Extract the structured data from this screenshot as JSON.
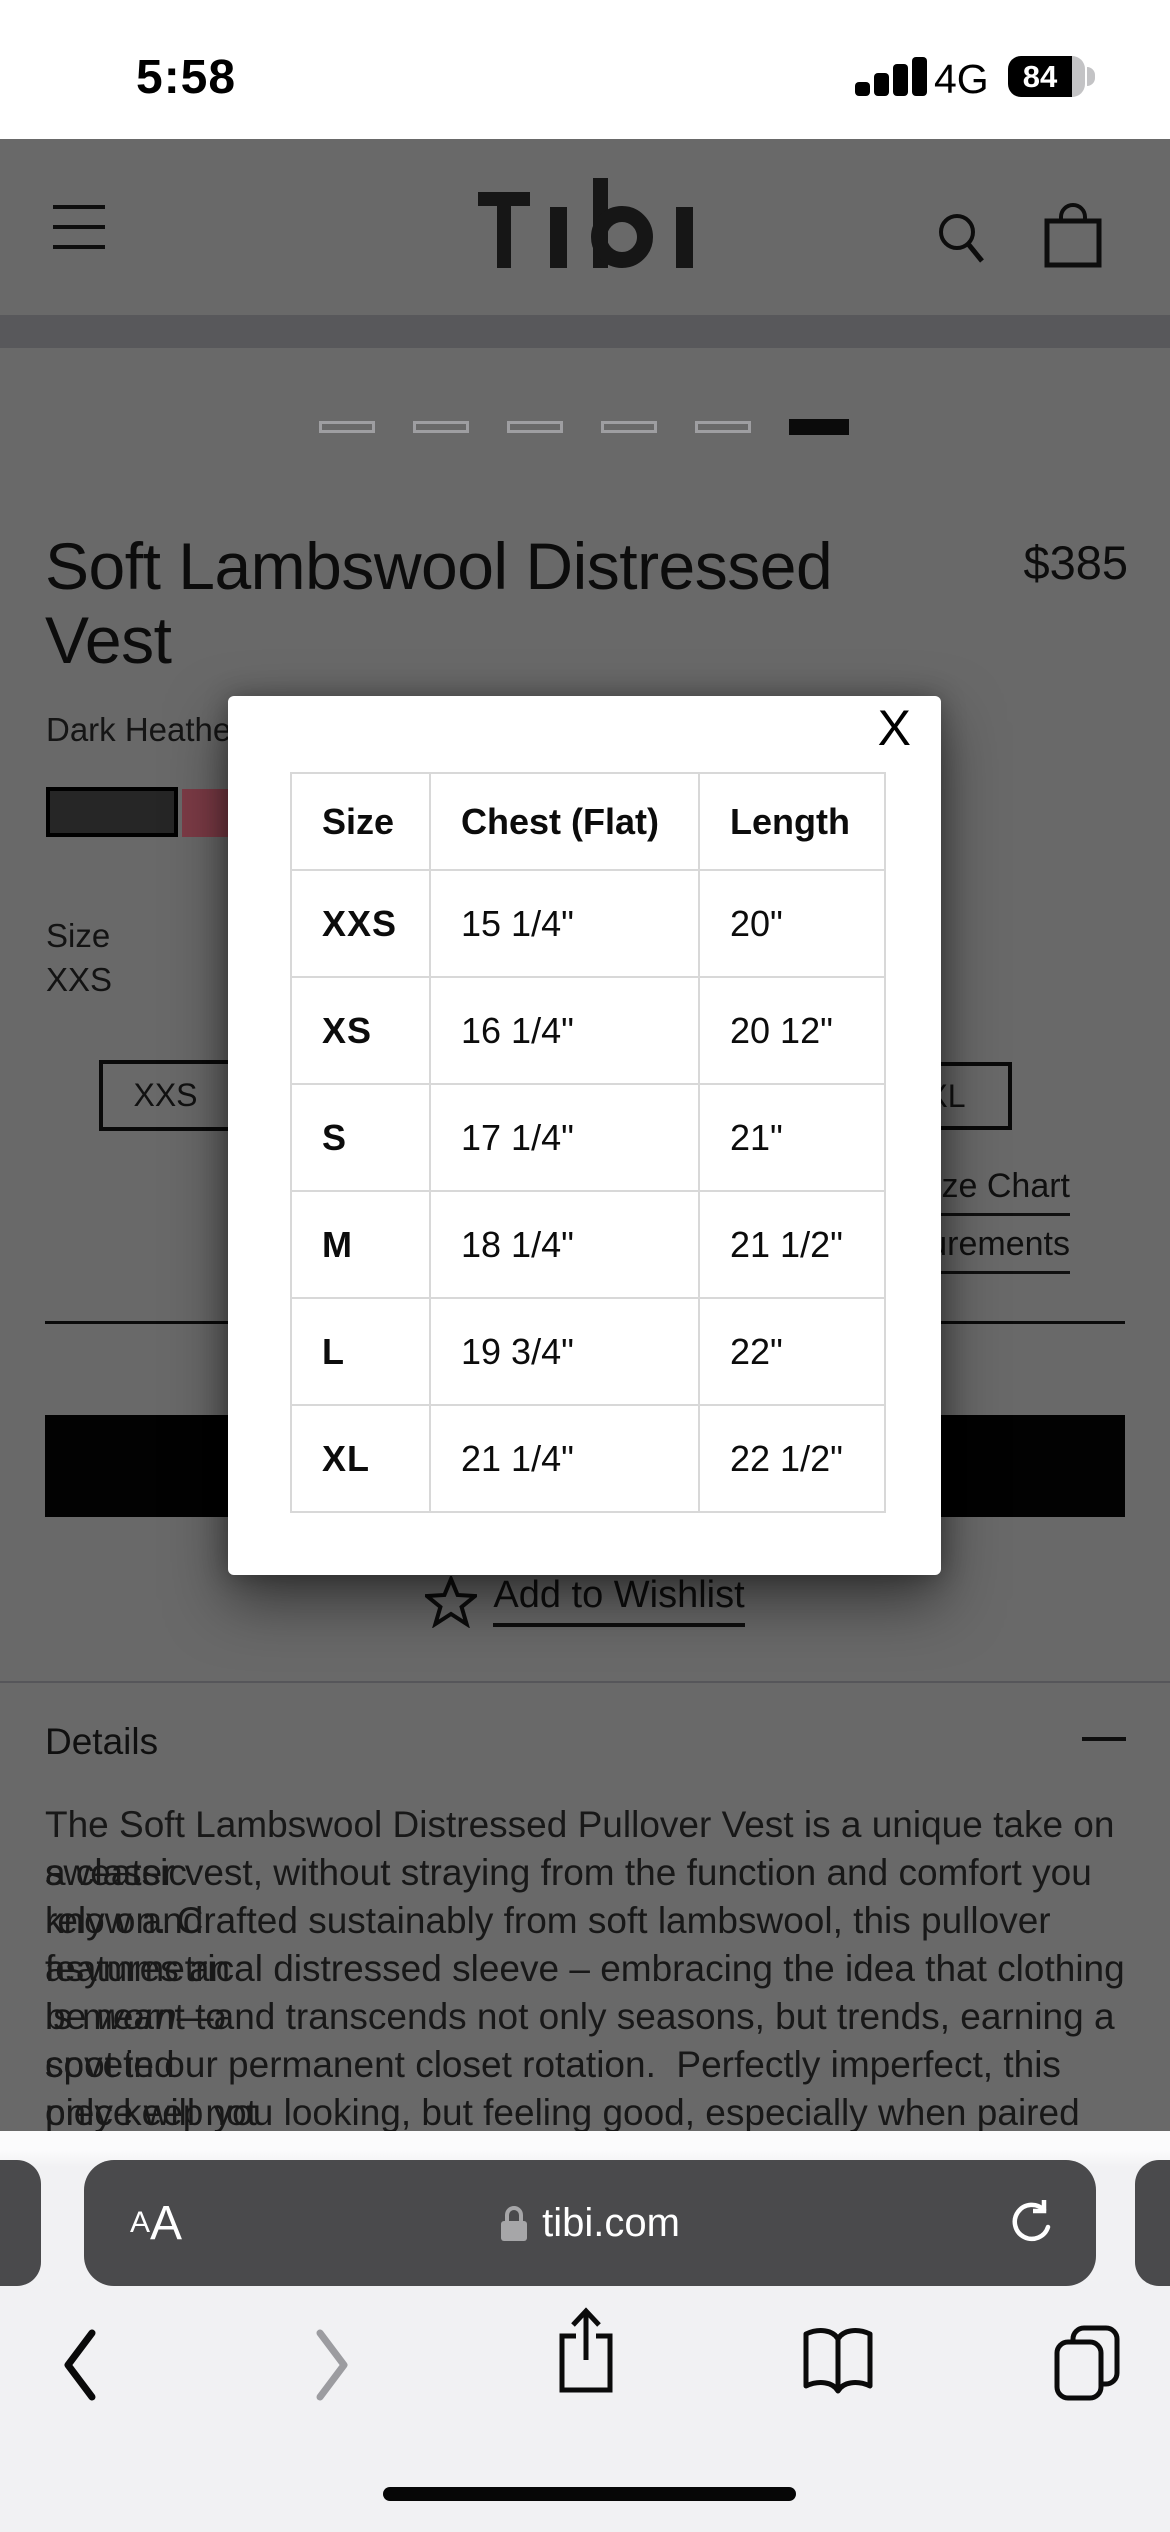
{
  "status_bar": {
    "time": "5:58",
    "network": "4G",
    "battery_percent": "84"
  },
  "header": {
    "brand": "Tibi"
  },
  "carousel": {
    "count": 6,
    "active_index": 5
  },
  "product": {
    "title": "Soft Lambswool Distressed\nVest",
    "price": "$385",
    "color_label": "Dark Heather",
    "size_label": "Size",
    "selected_size": "XXS"
  },
  "size_buttons": {
    "left": "XXS",
    "right": "XL"
  },
  "links": {
    "size_chart": "Size Chart",
    "measurements": "urements",
    "wishlist": "Add to Wishlist"
  },
  "size_chart_modal": {
    "close_label": "X",
    "columns": [
      "Size",
      "Chest (Flat)",
      "Length"
    ],
    "rows": [
      [
        "XXS",
        "15 1/4\"",
        "20\""
      ],
      [
        "XS",
        "16 1/4\"",
        "20 12\""
      ],
      [
        "S",
        "17 1/4\"",
        "21\""
      ],
      [
        "M",
        "18 1/4\"",
        "21 1/2\""
      ],
      [
        "L",
        "19 3/4\"",
        "22\""
      ],
      [
        "XL",
        "21 1/4\"",
        "22 1/2\""
      ]
    ]
  },
  "details": {
    "heading": "Details",
    "paragraph_lines": [
      "The Soft Lambswool Distressed Pullover Vest is a unique take on a classic",
      "sweater vest, without straying from the function and comfort you know and",
      "rely on. Crafted sustainably from soft lambswool, this pullover features an",
      "asymmetrical distressed sleeve – embracing the idea that clothing is meant to",
      "be *worn*—and transcends not only seasons, but trends, earning a coveted",
      "spot in our permanent closet rotation.  Perfectly imperfect, this piece will not",
      "only keep you looking, but feeling good, especially when paired back to our"
    ]
  },
  "browser": {
    "reader_label_small": "A",
    "reader_label_big": "A",
    "url": "tibi.com"
  },
  "colors": {
    "dim_background": "#696969",
    "accent_swatch": "#7c3b46",
    "pill_dark": "#4a4a4c",
    "modal_bg": "#ffffff",
    "table_border": "#d8d8d8"
  }
}
